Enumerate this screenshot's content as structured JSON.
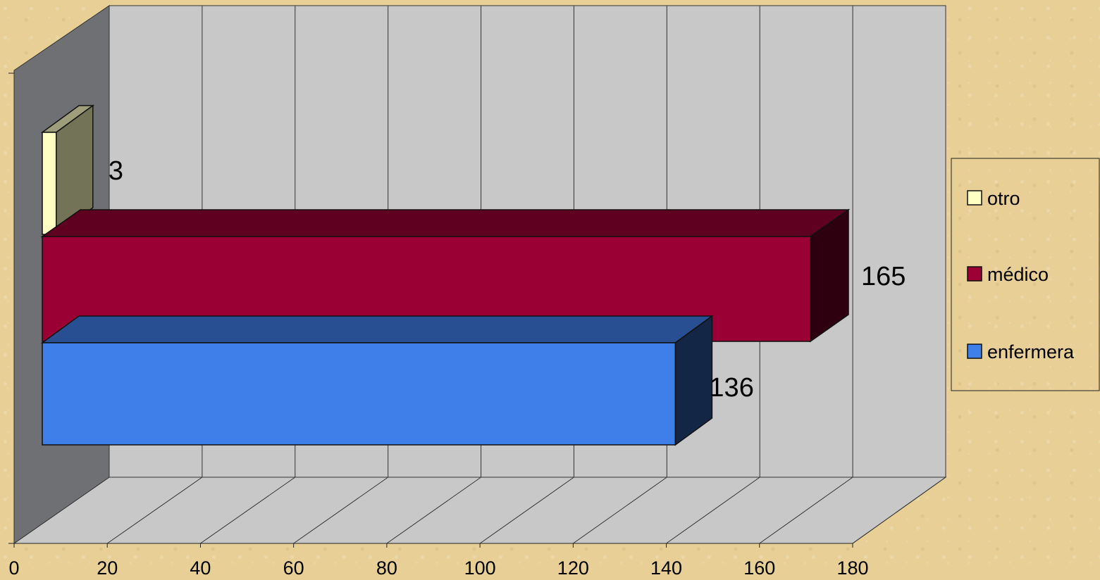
{
  "chart_data": {
    "type": "bar",
    "orientation": "horizontal",
    "style": "3d",
    "categories": [
      "otro",
      "médico",
      "enfermera"
    ],
    "values": [
      3,
      165,
      136
    ],
    "data_labels": [
      "3",
      "165",
      "136"
    ],
    "xlim": [
      0,
      180
    ],
    "x_ticks": [
      "0",
      "20",
      "40",
      "60",
      "80",
      "100",
      "120",
      "140",
      "160",
      "180"
    ],
    "grid": true,
    "legend": {
      "placement": "right",
      "entries": [
        "otro",
        "médico",
        "enfermera"
      ]
    },
    "colors": {
      "otro": "#ffffc4",
      "médico": "#9a0033",
      "enfermera": "#3f7fea"
    }
  }
}
